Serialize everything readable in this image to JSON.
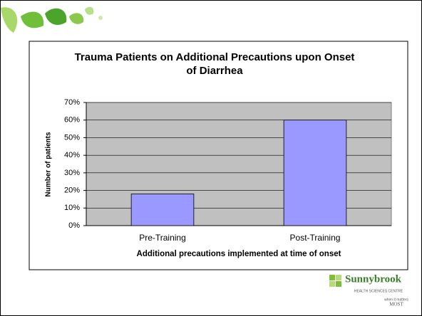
{
  "chart_data": {
    "type": "bar",
    "title": "Trauma Patients on Additional Precautions upon Onset of Diarrhea",
    "y_label": "Number of patients",
    "x_label": "Additional precautions implemented at time of onset",
    "categories": [
      "Pre-Training",
      "Post-Training"
    ],
    "values": [
      18,
      60
    ],
    "color": "#9999ff",
    "ylim": [
      0,
      70
    ],
    "yticks": [
      {
        "value": 0,
        "label": "0%"
      },
      {
        "value": 10,
        "label": "10%"
      },
      {
        "value": 20,
        "label": "20%"
      },
      {
        "value": 30,
        "label": "30%"
      },
      {
        "value": 40,
        "label": "40%"
      },
      {
        "value": 50,
        "label": "50%"
      },
      {
        "value": 60,
        "label": "60%"
      },
      {
        "value": 70,
        "label": "70%"
      }
    ],
    "grid": true
  },
  "logo": {
    "name": "Sunnybrook",
    "subtitle": "HEALTH SCIENCES CENTRE",
    "tagline": "when it matters",
    "tagline2": "MOST"
  }
}
